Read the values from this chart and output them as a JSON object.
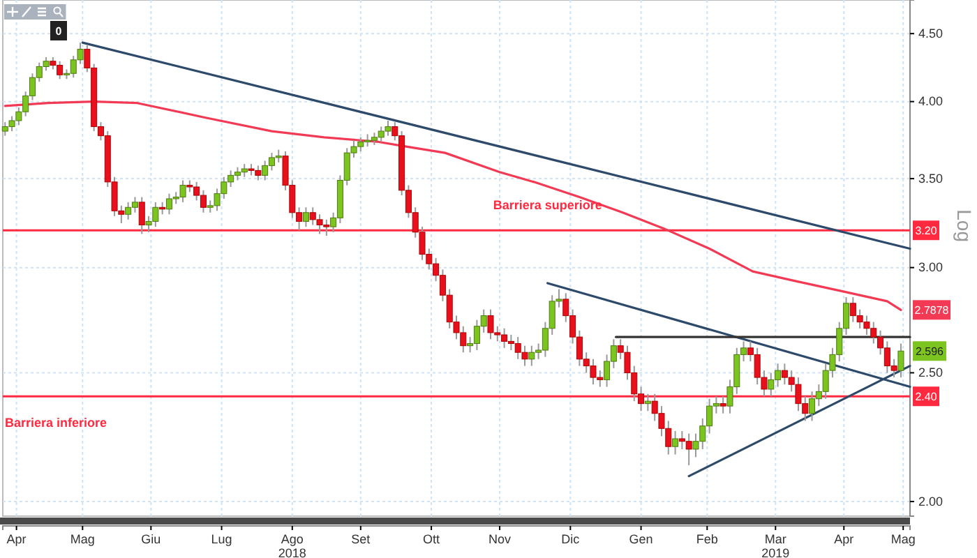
{
  "chart_data": {
    "type": "candlestick",
    "log": "y",
    "grid": true,
    "ylabel": "Log",
    "xlim": [
      "2018-04-11",
      "2019-05-14"
    ],
    "ylim": [
      1.95,
      4.77
    ],
    "yticks": [
      {
        "value": 2,
        "label": "2.00"
      },
      {
        "value": 2.5,
        "label": "2.50"
      },
      {
        "value": 3,
        "label": "3.00"
      },
      {
        "value": 3.5,
        "label": "3.50"
      },
      {
        "value": 4,
        "label": "4.00"
      },
      {
        "value": 4.5,
        "label": "4.50"
      }
    ],
    "xticks": [
      {
        "value": "2018-04-17",
        "label": "Apr"
      },
      {
        "value": "2018-05-16",
        "label": "Mag"
      },
      {
        "value": "2018-06-15",
        "label": "Giu"
      },
      {
        "value": "2018-07-16",
        "label": "Lug"
      },
      {
        "value": "2018-08-16",
        "label": "Ago\n2018"
      },
      {
        "value": "2018-09-15",
        "label": "Set"
      },
      {
        "value": "2018-10-16",
        "label": "Ott"
      },
      {
        "value": "2018-11-15",
        "label": "Nov"
      },
      {
        "value": "2018-12-16",
        "label": "Dic"
      },
      {
        "value": "2019-01-16",
        "label": "Gen"
      },
      {
        "value": "2019-02-14",
        "label": "Feb"
      },
      {
        "value": "2019-03-16",
        "label": "Mar\n2019"
      },
      {
        "value": "2019-04-15",
        "label": "Apr"
      },
      {
        "value": "2019-05-11",
        "label": "Mag"
      }
    ],
    "x": [
      "2018-04-12",
      "2018-04-15",
      "2018-04-18",
      "2018-04-21",
      "2018-04-24",
      "2018-04-27",
      "2018-04-30",
      "2018-05-03",
      "2018-05-06",
      "2018-05-09",
      "2018-05-12",
      "2018-05-15",
      "2018-05-18",
      "2018-05-21",
      "2018-05-24",
      "2018-05-27",
      "2018-05-30",
      "2018-06-02",
      "2018-06-05",
      "2018-06-08",
      "2018-06-11",
      "2018-06-14",
      "2018-06-17",
      "2018-06-20",
      "2018-06-23",
      "2018-06-26",
      "2018-06-29",
      "2018-07-02",
      "2018-07-05",
      "2018-07-08",
      "2018-07-11",
      "2018-07-14",
      "2018-07-17",
      "2018-07-20",
      "2018-07-23",
      "2018-07-26",
      "2018-07-29",
      "2018-08-01",
      "2018-08-04",
      "2018-08-07",
      "2018-08-10",
      "2018-08-13",
      "2018-08-16",
      "2018-08-19",
      "2018-08-22",
      "2018-08-25",
      "2018-08-28",
      "2018-08-31",
      "2018-09-03",
      "2018-09-06",
      "2018-09-09",
      "2018-09-12",
      "2018-09-15",
      "2018-09-18",
      "2018-09-21",
      "2018-09-24",
      "2018-09-27",
      "2018-09-30",
      "2018-10-03",
      "2018-10-06",
      "2018-10-09",
      "2018-10-12",
      "2018-10-15",
      "2018-10-18",
      "2018-10-21",
      "2018-10-24",
      "2018-10-27",
      "2018-10-30",
      "2018-11-02",
      "2018-11-05",
      "2018-11-08",
      "2018-11-11",
      "2018-11-14",
      "2018-11-17",
      "2018-11-20",
      "2018-11-23",
      "2018-11-26",
      "2018-11-29",
      "2018-12-02",
      "2018-12-05",
      "2018-12-08",
      "2018-12-11",
      "2018-12-14",
      "2018-12-17",
      "2018-12-20",
      "2018-12-23",
      "2018-12-26",
      "2018-12-29",
      "2019-01-01",
      "2019-01-04",
      "2019-01-07",
      "2019-01-10",
      "2019-01-13",
      "2019-01-16",
      "2019-01-19",
      "2019-01-22",
      "2019-01-25",
      "2019-01-28",
      "2019-01-31",
      "2019-02-03",
      "2019-02-06",
      "2019-02-09",
      "2019-02-12",
      "2019-02-15",
      "2019-02-18",
      "2019-02-21",
      "2019-02-24",
      "2019-02-27",
      "2019-03-02",
      "2019-03-05",
      "2019-03-08",
      "2019-03-11",
      "2019-03-14",
      "2019-03-17",
      "2019-03-20",
      "2019-03-23",
      "2019-03-26",
      "2019-03-29",
      "2019-04-01",
      "2019-04-04",
      "2019-04-07",
      "2019-04-10",
      "2019-04-13",
      "2019-04-16",
      "2019-04-19",
      "2019-04-22",
      "2019-04-25",
      "2019-04-28",
      "2019-05-01",
      "2019-05-04",
      "2019-05-07",
      "2019-05-10"
    ],
    "ohlc": [
      [
        3.8,
        3.86,
        3.77,
        3.83
      ],
      [
        3.83,
        3.9,
        3.8,
        3.87
      ],
      [
        3.87,
        3.96,
        3.84,
        3.93
      ],
      [
        3.93,
        4.07,
        3.9,
        4.04
      ],
      [
        4.04,
        4.2,
        4.01,
        4.17
      ],
      [
        4.17,
        4.28,
        4.14,
        4.25
      ],
      [
        4.25,
        4.32,
        4.22,
        4.29
      ],
      [
        4.29,
        4.32,
        4.23,
        4.26
      ],
      [
        4.26,
        4.29,
        4.16,
        4.19
      ],
      [
        4.19,
        4.23,
        4.16,
        4.2
      ],
      [
        4.2,
        4.33,
        4.17,
        4.3
      ],
      [
        4.3,
        4.43,
        4.27,
        4.38
      ],
      [
        4.38,
        4.41,
        4.21,
        4.24
      ],
      [
        4.24,
        4.27,
        3.8,
        3.83
      ],
      [
        3.83,
        3.86,
        3.74,
        3.77
      ],
      [
        3.77,
        3.8,
        3.45,
        3.48
      ],
      [
        3.48,
        3.51,
        3.28,
        3.31
      ],
      [
        3.31,
        3.34,
        3.24,
        3.29
      ],
      [
        3.29,
        3.36,
        3.26,
        3.33
      ],
      [
        3.33,
        3.39,
        3.3,
        3.36
      ],
      [
        3.36,
        3.39,
        3.18,
        3.23
      ],
      [
        3.23,
        3.28,
        3.19,
        3.25
      ],
      [
        3.25,
        3.36,
        3.22,
        3.33
      ],
      [
        3.33,
        3.36,
        3.29,
        3.32
      ],
      [
        3.32,
        3.41,
        3.29,
        3.38
      ],
      [
        3.38,
        3.42,
        3.35,
        3.39
      ],
      [
        3.39,
        3.49,
        3.36,
        3.46
      ],
      [
        3.46,
        3.49,
        3.42,
        3.45
      ],
      [
        3.45,
        3.48,
        3.37,
        3.4
      ],
      [
        3.4,
        3.43,
        3.3,
        3.33
      ],
      [
        3.33,
        3.37,
        3.3,
        3.34
      ],
      [
        3.34,
        3.44,
        3.31,
        3.41
      ],
      [
        3.41,
        3.51,
        3.38,
        3.48
      ],
      [
        3.48,
        3.55,
        3.45,
        3.52
      ],
      [
        3.52,
        3.57,
        3.49,
        3.54
      ],
      [
        3.54,
        3.59,
        3.51,
        3.56
      ],
      [
        3.56,
        3.59,
        3.52,
        3.55
      ],
      [
        3.55,
        3.58,
        3.49,
        3.52
      ],
      [
        3.52,
        3.61,
        3.49,
        3.58
      ],
      [
        3.58,
        3.66,
        3.55,
        3.63
      ],
      [
        3.63,
        3.68,
        3.6,
        3.64
      ],
      [
        3.64,
        3.67,
        3.43,
        3.46
      ],
      [
        3.46,
        3.49,
        3.27,
        3.3
      ],
      [
        3.3,
        3.33,
        3.2,
        3.25
      ],
      [
        3.25,
        3.33,
        3.22,
        3.3
      ],
      [
        3.3,
        3.33,
        3.23,
        3.26
      ],
      [
        3.26,
        3.29,
        3.18,
        3.23
      ],
      [
        3.23,
        3.26,
        3.17,
        3.22
      ],
      [
        3.22,
        3.3,
        3.19,
        3.27
      ],
      [
        3.27,
        3.52,
        3.24,
        3.49
      ],
      [
        3.49,
        3.69,
        3.46,
        3.66
      ],
      [
        3.66,
        3.74,
        3.63,
        3.7
      ],
      [
        3.7,
        3.76,
        3.67,
        3.73
      ],
      [
        3.73,
        3.78,
        3.7,
        3.74
      ],
      [
        3.74,
        3.79,
        3.71,
        3.76
      ],
      [
        3.76,
        3.83,
        3.73,
        3.8
      ],
      [
        3.8,
        3.87,
        3.77,
        3.83
      ],
      [
        3.83,
        3.86,
        3.74,
        3.77
      ],
      [
        3.77,
        3.8,
        3.4,
        3.43
      ],
      [
        3.43,
        3.46,
        3.27,
        3.3
      ],
      [
        3.3,
        3.33,
        3.16,
        3.19
      ],
      [
        3.19,
        3.22,
        3.04,
        3.07
      ],
      [
        3.07,
        3.1,
        2.99,
        3.02
      ],
      [
        3.02,
        3.05,
        2.93,
        2.96
      ],
      [
        2.96,
        2.99,
        2.83,
        2.86
      ],
      [
        2.86,
        2.89,
        2.7,
        2.73
      ],
      [
        2.73,
        2.76,
        2.65,
        2.68
      ],
      [
        2.68,
        2.71,
        2.59,
        2.62
      ],
      [
        2.62,
        2.66,
        2.59,
        2.63
      ],
      [
        2.63,
        2.74,
        2.6,
        2.71
      ],
      [
        2.71,
        2.79,
        2.68,
        2.76
      ],
      [
        2.76,
        2.79,
        2.65,
        2.68
      ],
      [
        2.68,
        2.71,
        2.64,
        2.67
      ],
      [
        2.67,
        2.7,
        2.61,
        2.64
      ],
      [
        2.64,
        2.67,
        2.6,
        2.63
      ],
      [
        2.63,
        2.66,
        2.56,
        2.59
      ],
      [
        2.59,
        2.62,
        2.53,
        2.56
      ],
      [
        2.56,
        2.62,
        2.53,
        2.59
      ],
      [
        2.59,
        2.63,
        2.56,
        2.6
      ],
      [
        2.6,
        2.73,
        2.57,
        2.7
      ],
      [
        2.7,
        2.86,
        2.67,
        2.83
      ],
      [
        2.83,
        2.89,
        2.8,
        2.84
      ],
      [
        2.84,
        2.87,
        2.73,
        2.76
      ],
      [
        2.76,
        2.79,
        2.63,
        2.66
      ],
      [
        2.66,
        2.69,
        2.53,
        2.56
      ],
      [
        2.56,
        2.59,
        2.5,
        2.53
      ],
      [
        2.53,
        2.56,
        2.45,
        2.48
      ],
      [
        2.48,
        2.51,
        2.44,
        2.47
      ],
      [
        2.47,
        2.58,
        2.44,
        2.55
      ],
      [
        2.55,
        2.65,
        2.52,
        2.62
      ],
      [
        2.62,
        2.65,
        2.56,
        2.59
      ],
      [
        2.59,
        2.62,
        2.47,
        2.5
      ],
      [
        2.5,
        2.53,
        2.38,
        2.41
      ],
      [
        2.41,
        2.44,
        2.34,
        2.37
      ],
      [
        2.37,
        2.41,
        2.34,
        2.38
      ],
      [
        2.38,
        2.41,
        2.3,
        2.33
      ],
      [
        2.33,
        2.36,
        2.24,
        2.27
      ],
      [
        2.27,
        2.3,
        2.17,
        2.2
      ],
      [
        2.2,
        2.26,
        2.17,
        2.23
      ],
      [
        2.23,
        2.26,
        2.19,
        2.22
      ],
      [
        2.22,
        2.25,
        2.13,
        2.19
      ],
      [
        2.19,
        2.25,
        2.16,
        2.22
      ],
      [
        2.22,
        2.31,
        2.19,
        2.28
      ],
      [
        2.28,
        2.39,
        2.25,
        2.36
      ],
      [
        2.36,
        2.4,
        2.33,
        2.37
      ],
      [
        2.37,
        2.4,
        2.33,
        2.36
      ],
      [
        2.36,
        2.47,
        2.33,
        2.44
      ],
      [
        2.44,
        2.61,
        2.41,
        2.58
      ],
      [
        2.58,
        2.64,
        2.55,
        2.61
      ],
      [
        2.61,
        2.64,
        2.55,
        2.58
      ],
      [
        2.58,
        2.61,
        2.45,
        2.48
      ],
      [
        2.48,
        2.51,
        2.4,
        2.43
      ],
      [
        2.43,
        2.5,
        2.4,
        2.47
      ],
      [
        2.47,
        2.54,
        2.44,
        2.51
      ],
      [
        2.51,
        2.54,
        2.45,
        2.48
      ],
      [
        2.48,
        2.51,
        2.42,
        2.45
      ],
      [
        2.45,
        2.48,
        2.34,
        2.37
      ],
      [
        2.37,
        2.4,
        2.3,
        2.33
      ],
      [
        2.33,
        2.42,
        2.3,
        2.39
      ],
      [
        2.39,
        2.45,
        2.36,
        2.42
      ],
      [
        2.42,
        2.54,
        2.39,
        2.51
      ],
      [
        2.51,
        2.61,
        2.48,
        2.58
      ],
      [
        2.58,
        2.73,
        2.55,
        2.7
      ],
      [
        2.7,
        2.85,
        2.67,
        2.82
      ],
      [
        2.82,
        2.85,
        2.73,
        2.76
      ],
      [
        2.76,
        2.79,
        2.7,
        2.73
      ],
      [
        2.73,
        2.76,
        2.67,
        2.7
      ],
      [
        2.7,
        2.73,
        2.63,
        2.66
      ],
      [
        2.66,
        2.69,
        2.58,
        2.61
      ],
      [
        2.61,
        2.64,
        2.5,
        2.53
      ],
      [
        2.53,
        2.56,
        2.48,
        2.51
      ],
      [
        2.51,
        2.63,
        2.48,
        2.596
      ]
    ],
    "series": [
      {
        "type": "line",
        "color": "#f23a55",
        "x": [
          "2018-04-12",
          "2018-05-01",
          "2018-05-21",
          "2018-06-09",
          "2018-07-09",
          "2018-08-07",
          "2018-08-30",
          "2018-09-23",
          "2018-10-05",
          "2018-10-22",
          "2018-11-15",
          "2018-11-30",
          "2018-12-20",
          "2019-01-08",
          "2019-01-26",
          "2019-02-15",
          "2019-03-06",
          "2019-03-25",
          "2019-04-14",
          "2019-05-04",
          "2019-05-10"
        ],
        "values": [
          3.97,
          3.99,
          4.0,
          3.99,
          3.89,
          3.8,
          3.76,
          3.73,
          3.7,
          3.66,
          3.54,
          3.48,
          3.39,
          3.3,
          3.21,
          3.1,
          2.98,
          2.93,
          2.88,
          2.83,
          2.7878
        ],
        "value_labels": [
          null,
          null,
          null,
          null,
          null,
          null,
          null,
          null,
          null,
          null,
          null,
          null,
          null,
          null,
          null,
          null,
          null,
          null,
          null,
          null,
          "2.7878"
        ]
      },
      {
        "type": "line",
        "color": "#2e4a6b",
        "x": [
          "2018-05-16",
          "2019-05-14"
        ],
        "values": [
          4.43,
          3.1
        ]
      },
      {
        "type": "line",
        "color": "#2e4a6b",
        "x": [
          "2018-12-06",
          "2019-05-14"
        ],
        "values": [
          2.92,
          2.44
        ]
      },
      {
        "type": "line",
        "color": "#2e4a6b",
        "x": [
          "2019-02-06",
          "2019-05-14"
        ],
        "values": [
          2.09,
          2.53
        ]
      },
      {
        "type": "line",
        "color": "#333333",
        "x": [
          "2019-01-05",
          "2019-05-14"
        ],
        "values": [
          2.66,
          2.66
        ]
      }
    ],
    "ref_lines": [
      {
        "axis": "y",
        "value": 3.2,
        "label": "3.20",
        "color": "#ff2a40"
      },
      {
        "axis": "y",
        "value": 2.4,
        "label": "2.40",
        "color": "#ff2a40"
      }
    ],
    "annotations": [
      "Barriera superiore",
      "Barriera inferiore",
      "2.596",
      "0"
    ]
  }
}
